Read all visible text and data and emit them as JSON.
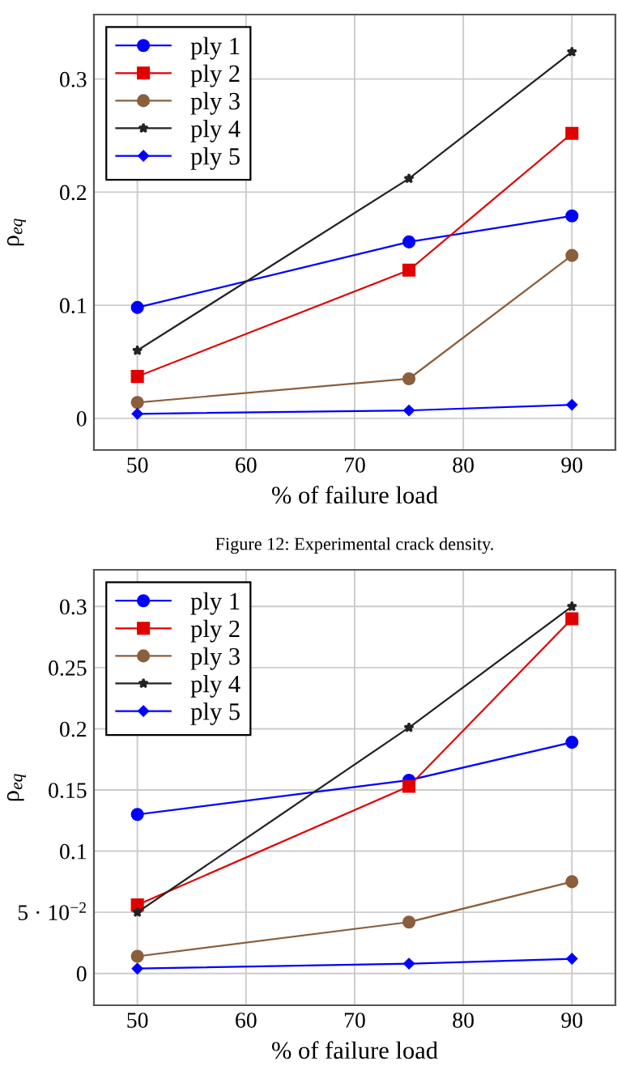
{
  "chart_data": [
    {
      "type": "line",
      "xlabel": "% of failure load",
      "ylabel": "ρ$_{eq}$",
      "x": [
        50,
        75,
        90
      ],
      "xlim": [
        46,
        94
      ],
      "ylim": [
        -0.028,
        0.357
      ],
      "xticks": [
        50,
        60,
        70,
        80,
        90
      ],
      "yticks": [
        0,
        0.1,
        0.2,
        0.3
      ],
      "grid": true,
      "legend": "top left",
      "annotations": [
        "Figure 12: Experimental crack density."
      ],
      "series": [
        {
          "name": "ply 1",
          "color": "#0000ff",
          "marker": "circle",
          "values": [
            0.098,
            0.156,
            0.179
          ]
        },
        {
          "name": "ply 2",
          "color": "#e00000",
          "marker": "square",
          "values": [
            0.037,
            0.131,
            0.252
          ]
        },
        {
          "name": "ply 3",
          "color": "#8b5e3c",
          "marker": "circle",
          "values": [
            0.014,
            0.035,
            0.144
          ]
        },
        {
          "name": "ply 4",
          "color": "#222222",
          "marker": "star",
          "values": [
            0.06,
            0.212,
            0.324
          ]
        },
        {
          "name": "ply 5",
          "color": "#0000ff",
          "marker": "diamond",
          "values": [
            0.004,
            0.007,
            0.012
          ]
        }
      ]
    },
    {
      "type": "line",
      "xlabel": "% of failure load",
      "ylabel": "ρ$_{eq}$",
      "x": [
        50,
        75,
        90
      ],
      "xlim": [
        46,
        94
      ],
      "ylim": [
        -0.026,
        0.33
      ],
      "xticks": [
        50,
        60,
        70,
        80,
        90
      ],
      "yticks": [
        0,
        {
          "value": 0.05,
          "label": "5 · 10$^{−2}$"
        },
        0.1,
        0.15,
        0.2,
        0.25,
        0.3
      ],
      "grid": true,
      "legend": "top left",
      "series": [
        {
          "name": "ply 1",
          "color": "#0000ff",
          "marker": "circle",
          "values": [
            0.13,
            0.158,
            0.189
          ]
        },
        {
          "name": "ply 2",
          "color": "#e00000",
          "marker": "square",
          "values": [
            0.056,
            0.153,
            0.29
          ]
        },
        {
          "name": "ply 3",
          "color": "#8b5e3c",
          "marker": "circle",
          "values": [
            0.014,
            0.042,
            0.075
          ]
        },
        {
          "name": "ply 4",
          "color": "#222222",
          "marker": "star",
          "values": [
            0.05,
            0.201,
            0.3
          ]
        },
        {
          "name": "ply 5",
          "color": "#0000ff",
          "marker": "diamond",
          "values": [
            0.004,
            0.008,
            0.012
          ]
        }
      ]
    }
  ]
}
